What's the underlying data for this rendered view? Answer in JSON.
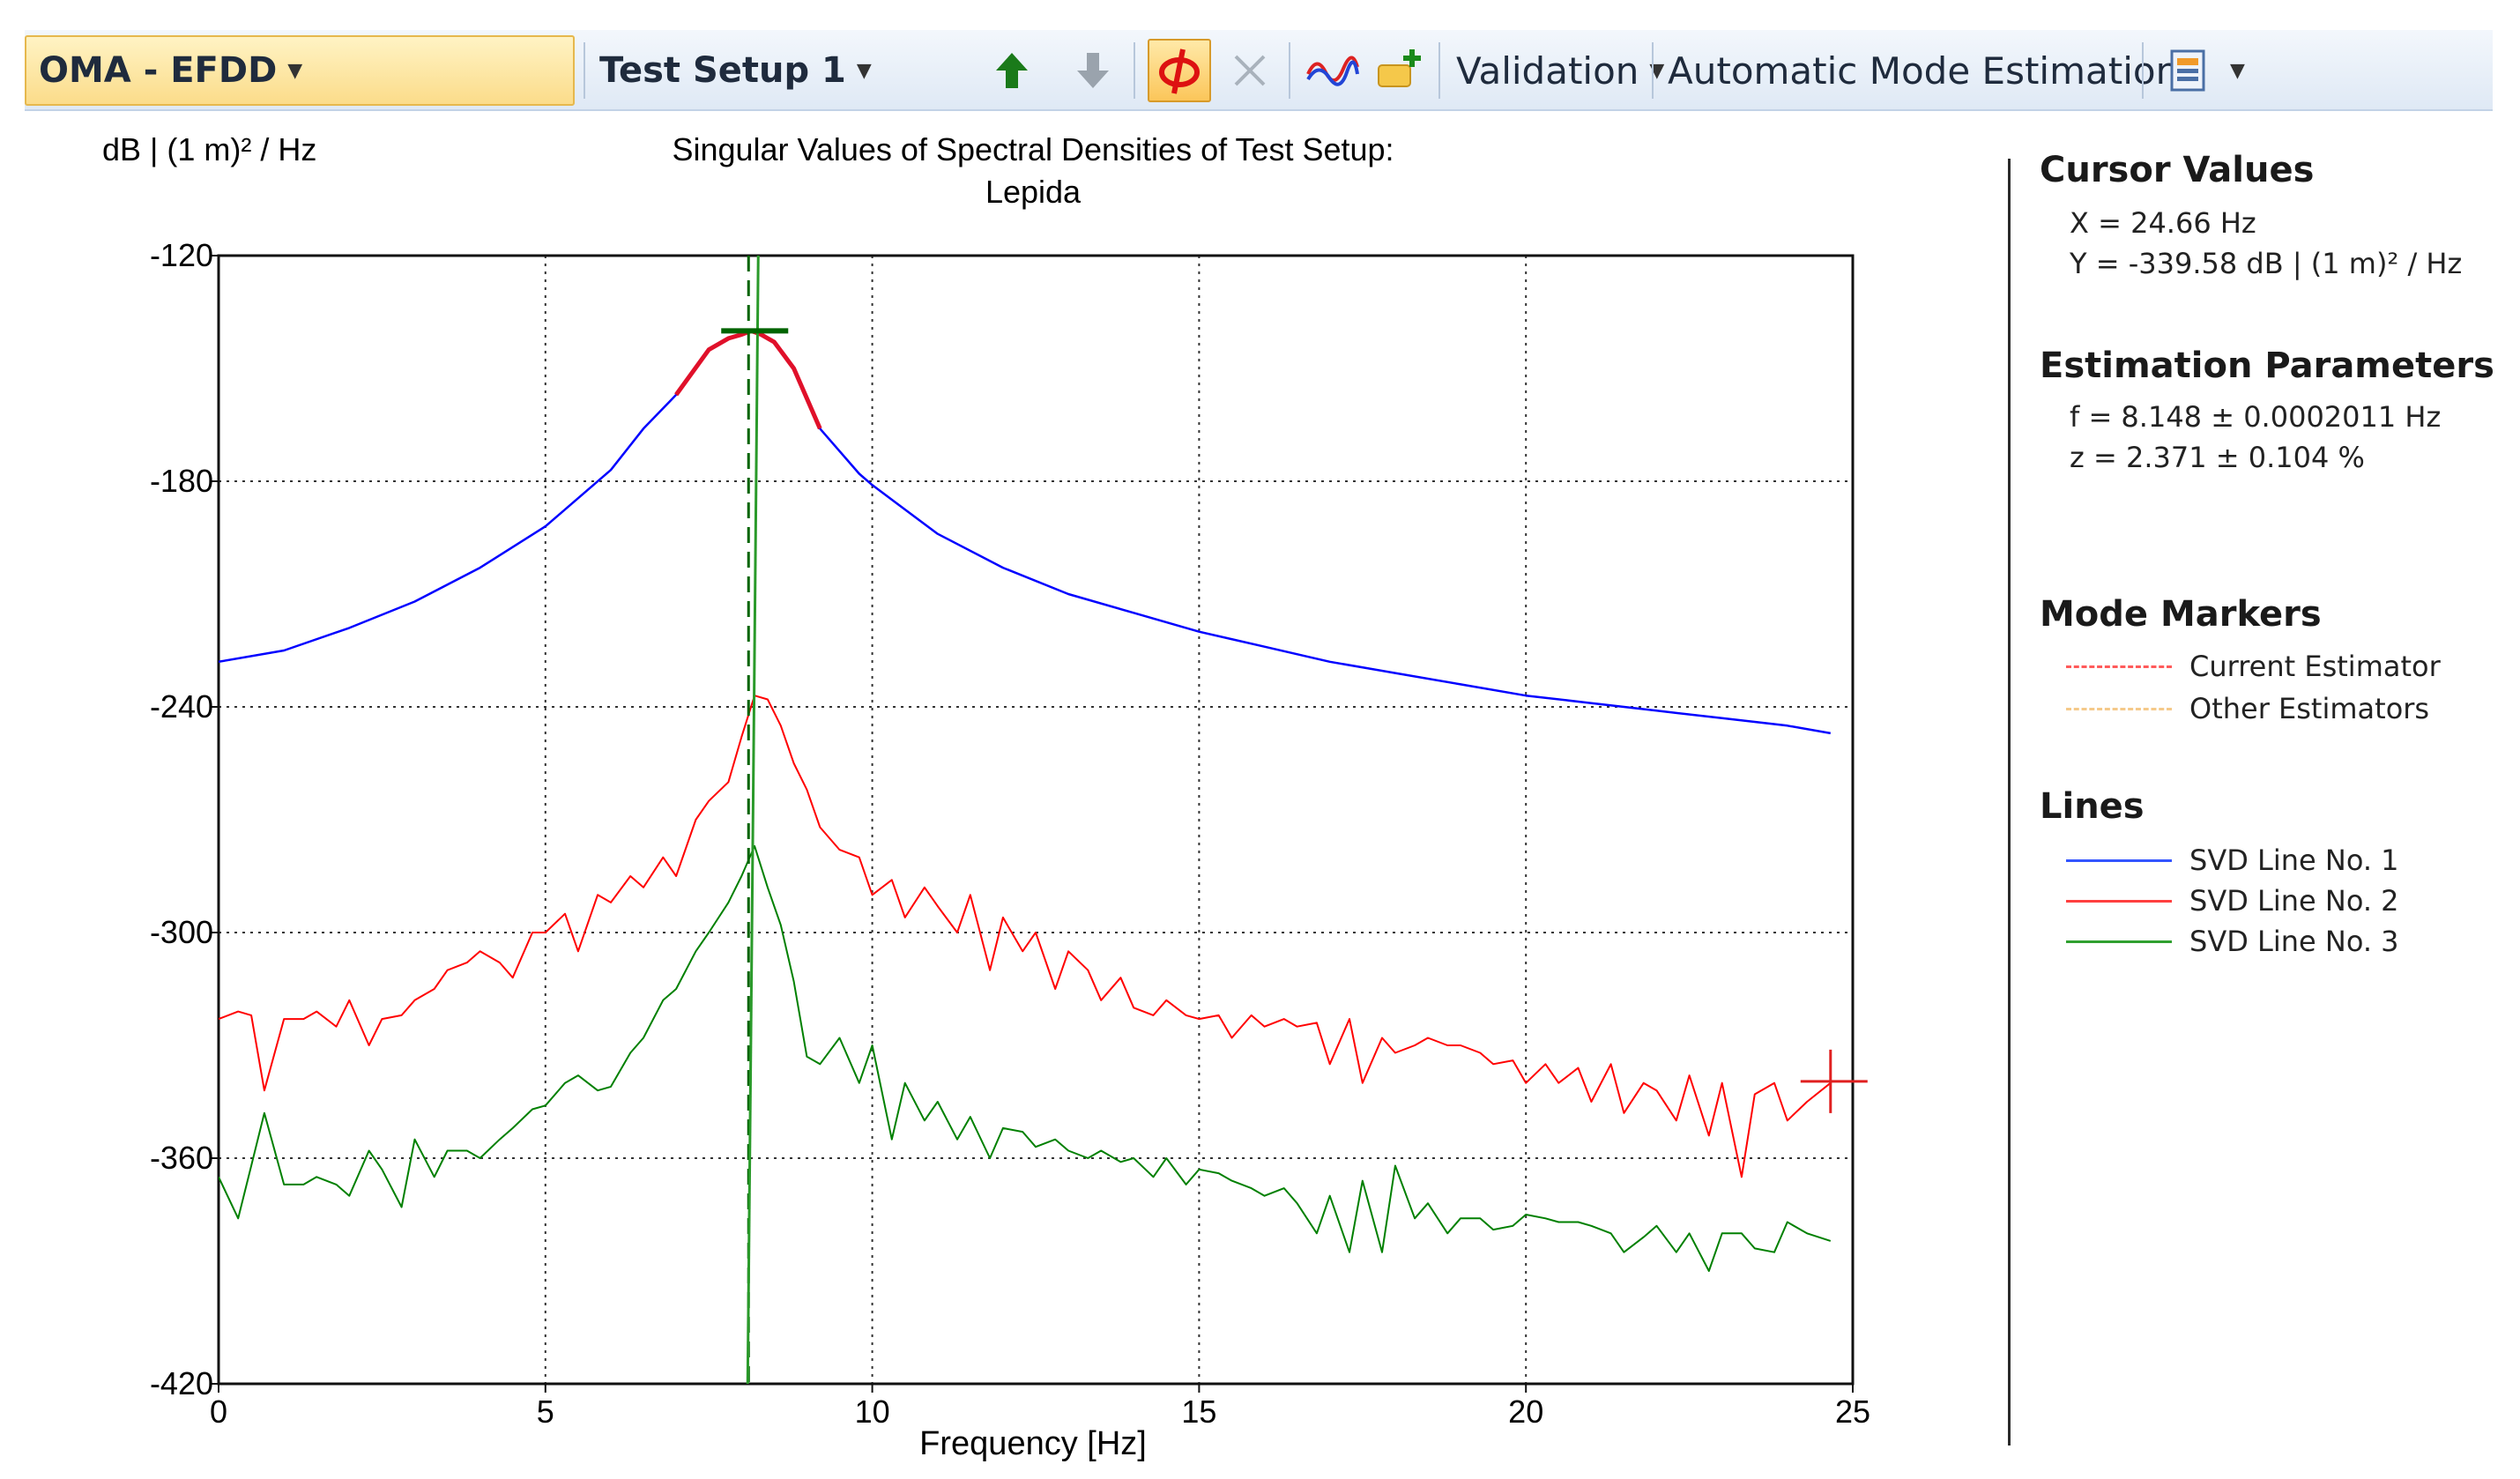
{
  "toolbar": {
    "analysis_dropdown": "OMA - EFDD",
    "setup_dropdown": "Test Setup 1",
    "validation_label": "Validation",
    "auto_mode_label": "Automatic Mode Estimation",
    "icons": [
      "arrow-up-icon",
      "arrow-down-icon",
      "phi-mode-shape-icon",
      "delete-x-icon",
      "svd-lines-icon",
      "add-marker-icon",
      "report-icon"
    ]
  },
  "chart_data": {
    "type": "line",
    "title": "Singular Values of Spectral Densities of Test Setup:",
    "subtitle": "Lepida",
    "xlabel": "Frequency [Hz]",
    "ylabel": "dB | (1 m)² / Hz",
    "xlim": [
      0,
      25
    ],
    "ylim": [
      -420,
      -120
    ],
    "xticks": [
      "0",
      "5",
      "10",
      "15",
      "20",
      "25"
    ],
    "yticks": [
      "-120",
      "-180",
      "-240",
      "-300",
      "-360",
      "-420"
    ],
    "grid": true,
    "colors": {
      "svd1": "#0000ff",
      "svd2": "#ff0000",
      "svd3": "#008000",
      "svd1_highlight": "#e0102a",
      "marker": "#006400"
    },
    "series": [
      {
        "name": "SVD Line No. 1",
        "x": [
          0,
          1,
          2,
          3,
          4,
          5,
          6,
          6.5,
          7,
          7.5,
          7.8,
          8.0,
          8.148,
          8.3,
          8.5,
          8.8,
          9.2,
          9.8,
          10,
          11,
          12,
          13,
          14,
          15,
          16,
          17,
          18,
          19,
          20,
          21,
          22,
          23,
          24,
          24.66
        ],
        "y": [
          -228,
          -225,
          -219,
          -212,
          -203,
          -192,
          -177,
          -166,
          -157,
          -145,
          -142,
          -141,
          -140,
          -141,
          -143,
          -150,
          -166,
          -178,
          -181,
          -194,
          -203,
          -210,
          -215,
          -220,
          -224,
          -228,
          -231,
          -234,
          -237,
          -239,
          -241,
          -243,
          -245,
          -247
        ]
      },
      {
        "name": "SVD Line No. 2",
        "x": [
          0,
          0.3,
          0.5,
          0.7,
          1.0,
          1.3,
          1.5,
          1.8,
          2.0,
          2.3,
          2.5,
          2.8,
          3.0,
          3.3,
          3.5,
          3.8,
          4.0,
          4.3,
          4.5,
          4.8,
          5.0,
          5.3,
          5.5,
          5.8,
          6.0,
          6.3,
          6.5,
          6.8,
          7.0,
          7.3,
          7.5,
          7.8,
          8.0,
          8.2,
          8.4,
          8.6,
          8.8,
          9.0,
          9.2,
          9.5,
          9.8,
          10.0,
          10.3,
          10.5,
          10.8,
          11.0,
          11.3,
          11.5,
          11.8,
          12.0,
          12.3,
          12.5,
          12.8,
          13.0,
          13.3,
          13.5,
          13.8,
          14.0,
          14.3,
          14.5,
          14.8,
          15.0,
          15.3,
          15.5,
          15.8,
          16.0,
          16.3,
          16.5,
          16.8,
          17.0,
          17.3,
          17.5,
          17.8,
          18.0,
          18.3,
          18.5,
          18.8,
          19.0,
          19.3,
          19.5,
          19.8,
          20.0,
          20.3,
          20.5,
          20.8,
          21.0,
          21.3,
          21.5,
          21.8,
          22.0,
          22.3,
          22.5,
          22.8,
          23.0,
          23.3,
          23.5,
          23.8,
          24.0,
          24.3,
          24.66
        ],
        "y": [
          -323,
          -321,
          -322,
          -342,
          -323,
          -323,
          -321,
          -325,
          -318,
          -330,
          -323,
          -322,
          -318,
          -315,
          -310,
          -308,
          -305,
          -308,
          -312,
          -300,
          -300,
          -295,
          -305,
          -290,
          -292,
          -285,
          -288,
          -280,
          -285,
          -270,
          -265,
          -260,
          -248,
          -237,
          -238,
          -245,
          -255,
          -262,
          -272,
          -278,
          -280,
          -290,
          -286,
          -296,
          -288,
          -293,
          -300,
          -290,
          -310,
          -296,
          -305,
          -300,
          -315,
          -305,
          -310,
          -318,
          -312,
          -320,
          -322,
          -318,
          -322,
          -323,
          -322,
          -328,
          -322,
          -325,
          -323,
          -325,
          -324,
          -335,
          -323,
          -340,
          -328,
          -332,
          -330,
          -328,
          -330,
          -330,
          -332,
          -335,
          -334,
          -340,
          -335,
          -340,
          -336,
          -345,
          -335,
          -348,
          -340,
          -342,
          -350,
          -338,
          -354,
          -340,
          -365,
          -343,
          -340,
          -350,
          -345,
          -340
        ]
      },
      {
        "name": "SVD Line No. 3",
        "x": [
          0,
          0.3,
          0.5,
          0.7,
          1.0,
          1.3,
          1.5,
          1.8,
          2.0,
          2.3,
          2.5,
          2.8,
          3.0,
          3.3,
          3.5,
          3.8,
          4.0,
          4.3,
          4.5,
          4.8,
          5.0,
          5.3,
          5.5,
          5.8,
          6.0,
          6.3,
          6.5,
          6.8,
          7.0,
          7.3,
          7.5,
          7.8,
          8.0,
          8.2,
          8.4,
          8.6,
          8.8,
          9.0,
          9.2,
          9.5,
          9.8,
          10.0,
          10.3,
          10.5,
          10.8,
          11.0,
          11.3,
          11.5,
          11.8,
          12.0,
          12.3,
          12.5,
          12.8,
          13.0,
          13.3,
          13.5,
          13.8,
          14.0,
          14.3,
          14.5,
          14.8,
          15.0,
          15.3,
          15.5,
          15.8,
          16.0,
          16.3,
          16.5,
          16.8,
          17.0,
          17.3,
          17.5,
          17.8,
          18.0,
          18.3,
          18.5,
          18.8,
          19.0,
          19.3,
          19.5,
          19.8,
          20.0,
          20.3,
          20.5,
          20.8,
          21.0,
          21.3,
          21.5,
          21.8,
          22.0,
          22.3,
          22.5,
          22.8,
          23.0,
          23.3,
          23.5,
          23.8,
          24.0,
          24.3,
          24.66
        ],
        "y": [
          -365,
          -376,
          -362,
          -348,
          -367,
          -367,
          -365,
          -367,
          -370,
          -358,
          -363,
          -373,
          -355,
          -365,
          -358,
          -358,
          -360,
          -355,
          -352,
          -347,
          -346,
          -340,
          -338,
          -342,
          -341,
          -332,
          -328,
          -318,
          -315,
          -305,
          -300,
          -292,
          -285,
          -277,
          -288,
          -298,
          -313,
          -333,
          -335,
          -328,
          -340,
          -330,
          -355,
          -340,
          -350,
          -345,
          -355,
          -349,
          -360,
          -352,
          -353,
          -357,
          -355,
          -358,
          -360,
          -358,
          -361,
          -360,
          -365,
          -360,
          -367,
          -363,
          -364,
          -366,
          -368,
          -370,
          -368,
          -372,
          -380,
          -370,
          -385,
          -366,
          -385,
          -362,
          -376,
          -372,
          -380,
          -376,
          -376,
          -379,
          -378,
          -375,
          -376,
          -377,
          -377,
          -378,
          -380,
          -385,
          -381,
          -378,
          -385,
          -380,
          -390,
          -380,
          -380,
          -384,
          -385,
          -377,
          -380,
          -382
        ]
      }
    ],
    "mode_marker_hz": 8.148,
    "cursor_hz": 24.66,
    "cursor_db": -339.58
  },
  "panel": {
    "cursor_title": "Cursor Values",
    "cursor_x": "X = 24.66 Hz",
    "cursor_y": "Y = -339.58 dB | (1 m)² / Hz",
    "estimation_title": "Estimation Parameters",
    "est_f": "f = 8.148 ± 0.0002011 Hz",
    "est_z": "z = 2.371 ± 0.104 %",
    "markers_title": "Mode Markers",
    "marker_current": "Current Estimator",
    "marker_other": "Other Estimators",
    "lines_title": "Lines",
    "line1": "SVD Line No. 1",
    "line2": "SVD Line No. 2",
    "line3": "SVD Line No. 3",
    "marker_colors": {
      "current": "#ff5a5a",
      "other": "#f5c98a"
    }
  }
}
